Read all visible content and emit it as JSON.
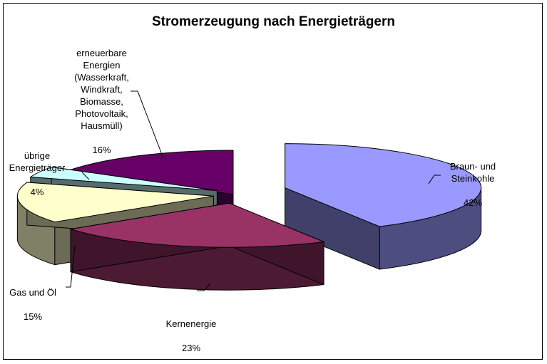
{
  "chart_data": {
    "type": "pie",
    "title": "Stromerzeugung nach Energieträgern",
    "style": "3d-exploded",
    "slices": [
      {
        "label": "Braun- und\nSteinkohle",
        "percent_label": "42%",
        "value": 42,
        "color": "#9999ff"
      },
      {
        "label": "Kernenergie",
        "percent_label": "23%",
        "value": 23,
        "color": "#993366"
      },
      {
        "label": "Gas und Öl",
        "percent_label": "15%",
        "value": 15,
        "color": "#ffffcc"
      },
      {
        "label": "übrige\nEnergieträger",
        "percent_label": "4%",
        "value": 4,
        "color": "#ccffff"
      },
      {
        "label": "erneuerbare\nEnergien\n(Wasserkraft,\nWindkraft,\nBiomasse,\nPhotovoltaik,\nHausmüll)",
        "percent_label": "16%",
        "value": 16,
        "color": "#660066"
      }
    ]
  }
}
